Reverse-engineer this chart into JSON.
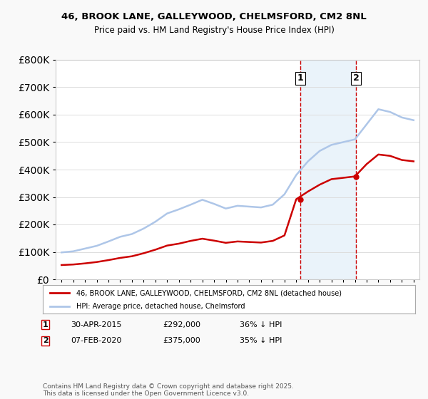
{
  "title_line1": "46, BROOK LANE, GALLEYWOOD, CHELMSFORD, CM2 8NL",
  "title_line2": "Price paid vs. HM Land Registry's House Price Index (HPI)",
  "ylabel": "",
  "xlabel": "",
  "background_color": "#f9f9f9",
  "plot_bg_color": "#ffffff",
  "hpi_color": "#aec6e8",
  "price_color": "#cc0000",
  "vline_color": "#cc0000",
  "shaded_color": "#d6e8f7",
  "legend_label_price": "46, BROOK LANE, GALLEYWOOD, CHELMSFORD, CM2 8NL (detached house)",
  "legend_label_hpi": "HPI: Average price, detached house, Chelmsford",
  "annotation1_label": "1",
  "annotation1_date": "30-APR-2015",
  "annotation1_price": "£292,000",
  "annotation1_pct": "36% ↓ HPI",
  "annotation2_label": "2",
  "annotation2_date": "07-FEB-2020",
  "annotation2_price": "£375,000",
  "annotation2_pct": "35% ↓ HPI",
  "footer": "Contains HM Land Registry data © Crown copyright and database right 2025.\nThis data is licensed under the Open Government Licence v3.0.",
  "ylim": [
    0,
    800000
  ],
  "yticks": [
    0,
    100000,
    200000,
    300000,
    400000,
    500000,
    600000,
    700000,
    800000
  ],
  "sale1_year": 2015.33,
  "sale2_year": 2020.1,
  "hpi_years": [
    1995,
    1996,
    1997,
    1998,
    1999,
    2000,
    2001,
    2002,
    2003,
    2004,
    2005,
    2006,
    2007,
    2008,
    2009,
    2010,
    2011,
    2012,
    2013,
    2014,
    2015,
    2016,
    2017,
    2018,
    2019,
    2020,
    2021,
    2022,
    2023,
    2024,
    2025
  ],
  "hpi_values": [
    98000,
    102000,
    112000,
    122000,
    138000,
    155000,
    165000,
    185000,
    210000,
    240000,
    255000,
    272000,
    290000,
    275000,
    258000,
    268000,
    265000,
    262000,
    272000,
    310000,
    380000,
    430000,
    468000,
    490000,
    500000,
    510000,
    565000,
    620000,
    610000,
    590000,
    580000
  ],
  "price_years": [
    1995,
    1996,
    1997,
    1998,
    1999,
    2000,
    2001,
    2002,
    2003,
    2004,
    2005,
    2006,
    2007,
    2008,
    2009,
    2010,
    2011,
    2012,
    2013,
    2014,
    2015,
    2016,
    2017,
    2018,
    2019,
    2020,
    2021,
    2022,
    2023,
    2024,
    2025
  ],
  "price_values": [
    52000,
    54000,
    58000,
    63000,
    70000,
    78000,
    84000,
    95000,
    108000,
    123000,
    130000,
    140000,
    148000,
    141000,
    133000,
    138000,
    136000,
    134000,
    140000,
    160000,
    292000,
    320000,
    345000,
    365000,
    370000,
    375000,
    420000,
    455000,
    450000,
    435000,
    430000
  ]
}
